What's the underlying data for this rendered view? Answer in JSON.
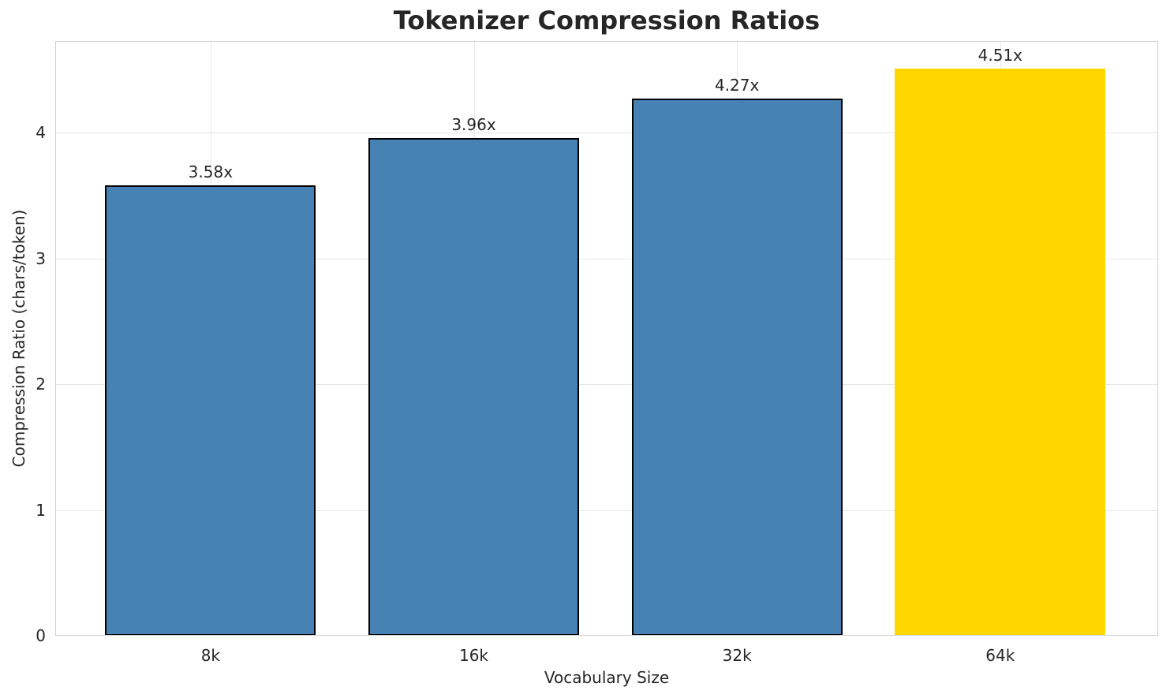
{
  "chart_data": {
    "type": "bar",
    "title": "Tokenizer Compression Ratios",
    "xlabel": "Vocabulary Size",
    "ylabel": "Compression Ratio (chars/token)",
    "categories": [
      "8k",
      "16k",
      "32k",
      "64k"
    ],
    "values": [
      3.58,
      3.96,
      4.27,
      4.51
    ],
    "bar_labels": [
      "3.58x",
      "3.96x",
      "4.27x",
      "4.51x"
    ],
    "bar_colors": [
      "#4682B4",
      "#4682B4",
      "#4682B4",
      "#FFD700"
    ],
    "bar_edge_colors": [
      "#000000",
      "#000000",
      "#000000",
      "none"
    ],
    "bar_edge_width": 2.5,
    "bar_width": 0.8,
    "yticks": [
      0,
      1,
      2,
      3,
      4
    ],
    "ylim": [
      0,
      4.73
    ],
    "xlim": [
      -0.59,
      3.6
    ],
    "grid": true,
    "legend": "none",
    "grid_color": "#e7e7e7",
    "spine_color": "#d0d0d0",
    "text_color": "#262626",
    "background_color": "#ffffff",
    "highlight_category": "64k"
  }
}
